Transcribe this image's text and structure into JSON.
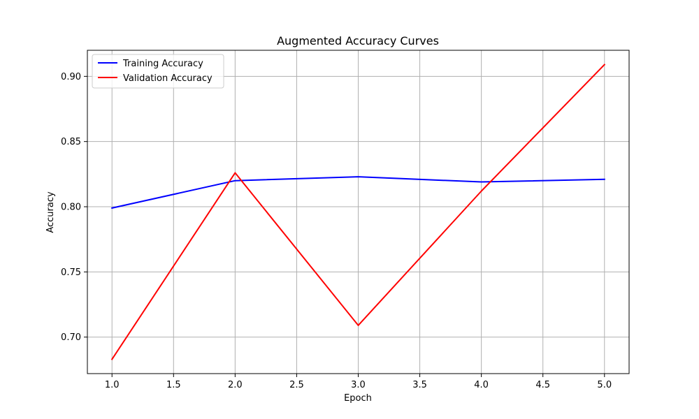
{
  "chart_data": {
    "type": "line",
    "title": "Augmented Accuracy Curves",
    "xlabel": "Epoch",
    "ylabel": "Accuracy",
    "x": [
      1,
      2,
      3,
      4,
      5
    ],
    "xlim": [
      0.8,
      5.2
    ],
    "ylim": [
      0.672,
      0.92
    ],
    "xticks": [
      1.0,
      1.5,
      2.0,
      2.5,
      3.0,
      3.5,
      4.0,
      4.5,
      5.0
    ],
    "xtick_labels": [
      "1.0",
      "1.5",
      "2.0",
      "2.5",
      "3.0",
      "3.5",
      "4.0",
      "4.5",
      "5.0"
    ],
    "yticks": [
      0.7,
      0.75,
      0.8,
      0.85,
      0.9
    ],
    "ytick_labels": [
      "0.70",
      "0.75",
      "0.80",
      "0.85",
      "0.90"
    ],
    "grid": true,
    "legend_position": "upper-left",
    "series": [
      {
        "name": "Training Accuracy",
        "color": "#0000ff",
        "values": [
          0.799,
          0.82,
          0.823,
          0.819,
          0.821
        ]
      },
      {
        "name": "Validation Accuracy",
        "color": "#ff0000",
        "values": [
          0.683,
          0.826,
          0.709,
          0.812,
          0.909
        ]
      }
    ]
  }
}
